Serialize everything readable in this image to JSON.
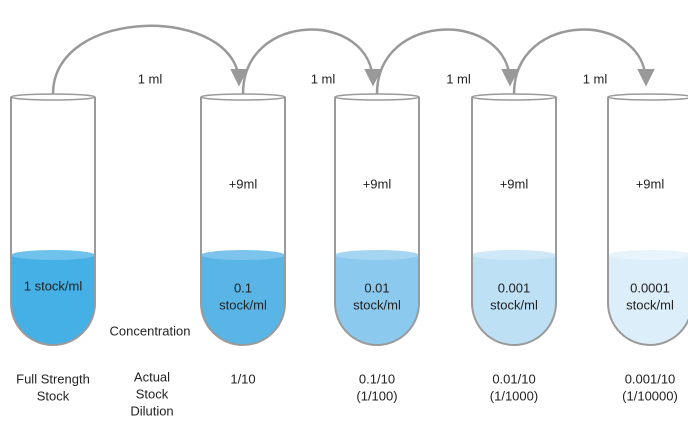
{
  "transfers": [
    "1 ml",
    "1 ml",
    "1 ml",
    "1 ml"
  ],
  "row_labels": {
    "concentration": "Concentration",
    "dilution": [
      "Actual",
      "Stock",
      "Dilution"
    ]
  },
  "tubes": [
    {
      "contents": [
        "1 stock/ml"
      ],
      "bottom_label": [
        "Full Strength",
        "Stock"
      ]
    },
    {
      "added": "+9ml",
      "contents": [
        "0.1",
        "stock/ml"
      ],
      "bottom_label": [
        "1/10"
      ]
    },
    {
      "added": "+9ml",
      "contents": [
        "0.01",
        "stock/ml"
      ],
      "bottom_label": [
        "0.1/10",
        "(1/100)"
      ]
    },
    {
      "added": "+9ml",
      "contents": [
        "0.001",
        "stock/ml"
      ],
      "bottom_label": [
        "0.01/10",
        "(1/1000)"
      ]
    },
    {
      "added": "+9ml",
      "contents": [
        "0.0001",
        "stock/ml"
      ],
      "bottom_label": [
        "0.001/10",
        "(1/10000)"
      ]
    }
  ]
}
